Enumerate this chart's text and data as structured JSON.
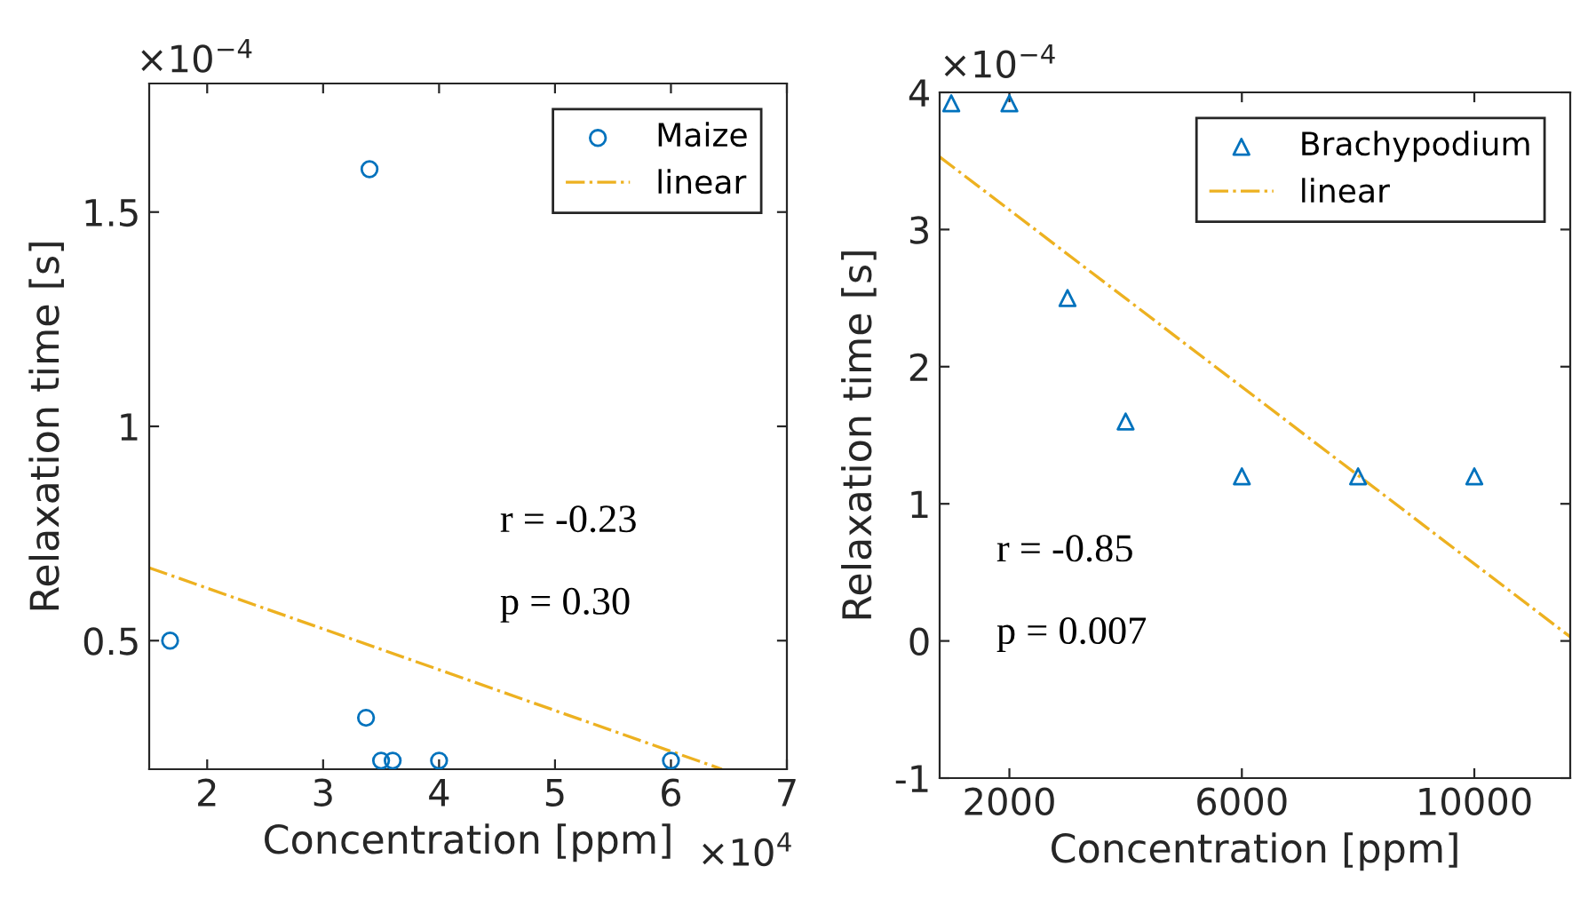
{
  "chart_data": [
    {
      "type": "scatter",
      "xlabel": "Concentration [ppm]",
      "ylabel": "Relaxation time [s]",
      "xlim": [
        1.5,
        7
      ],
      "xticks": [
        2,
        3,
        4,
        5,
        6,
        7
      ],
      "ylim": [
        0.2,
        1.8
      ],
      "yticks": [
        0.5,
        1,
        1.5
      ],
      "legend": "top right",
      "grid": false,
      "annotations": [
        "×10$^{−4}$",
        "×10$^{4}$",
        "r = -0.23",
        "p = 0.30"
      ],
      "series": [
        {
          "name": "Maize",
          "marker": "circle",
          "color": "#0072bd",
          "x": [
            1.68,
            3.4,
            3.37,
            3.5,
            3.6,
            4,
            6
          ],
          "values": [
            0.5,
            1.6,
            0.32,
            0.22,
            0.22,
            0.22,
            0.22
          ]
        },
        {
          "name": "linear",
          "type": "line",
          "marker": "none",
          "line_style": "dashdot",
          "color": "#edb120",
          "x": [
            1.5,
            6.44
          ],
          "values": [
            0.67,
            0.2
          ]
        }
      ]
    },
    {
      "type": "scatter",
      "xlabel": "Concentration [ppm]",
      "ylabel": "Relaxation time [s]",
      "xlim": [
        800,
        11650
      ],
      "xticks": [
        2000,
        6000,
        10000
      ],
      "ylim": [
        -1,
        4
      ],
      "yticks": [
        -1,
        0,
        1,
        2,
        3,
        4
      ],
      "legend": "top right",
      "grid": false,
      "annotations": [
        "×10$^{−4}$",
        "r = -0.85",
        "p = 0.007"
      ],
      "series": [
        {
          "name": "Brachypodium",
          "marker": "triangle",
          "color": "#0072bd",
          "x": [
            1000,
            2000,
            3000,
            4000,
            6000,
            8000,
            10000
          ],
          "values": [
            3.92,
            3.92,
            2.5,
            1.6,
            1.2,
            1.2,
            1.2
          ]
        },
        {
          "name": "linear",
          "type": "line",
          "marker": "none",
          "line_style": "dashdot",
          "color": "#edb120",
          "x": [
            800,
            11650
          ],
          "values": [
            3.53,
            0.03
          ]
        }
      ]
    }
  ]
}
